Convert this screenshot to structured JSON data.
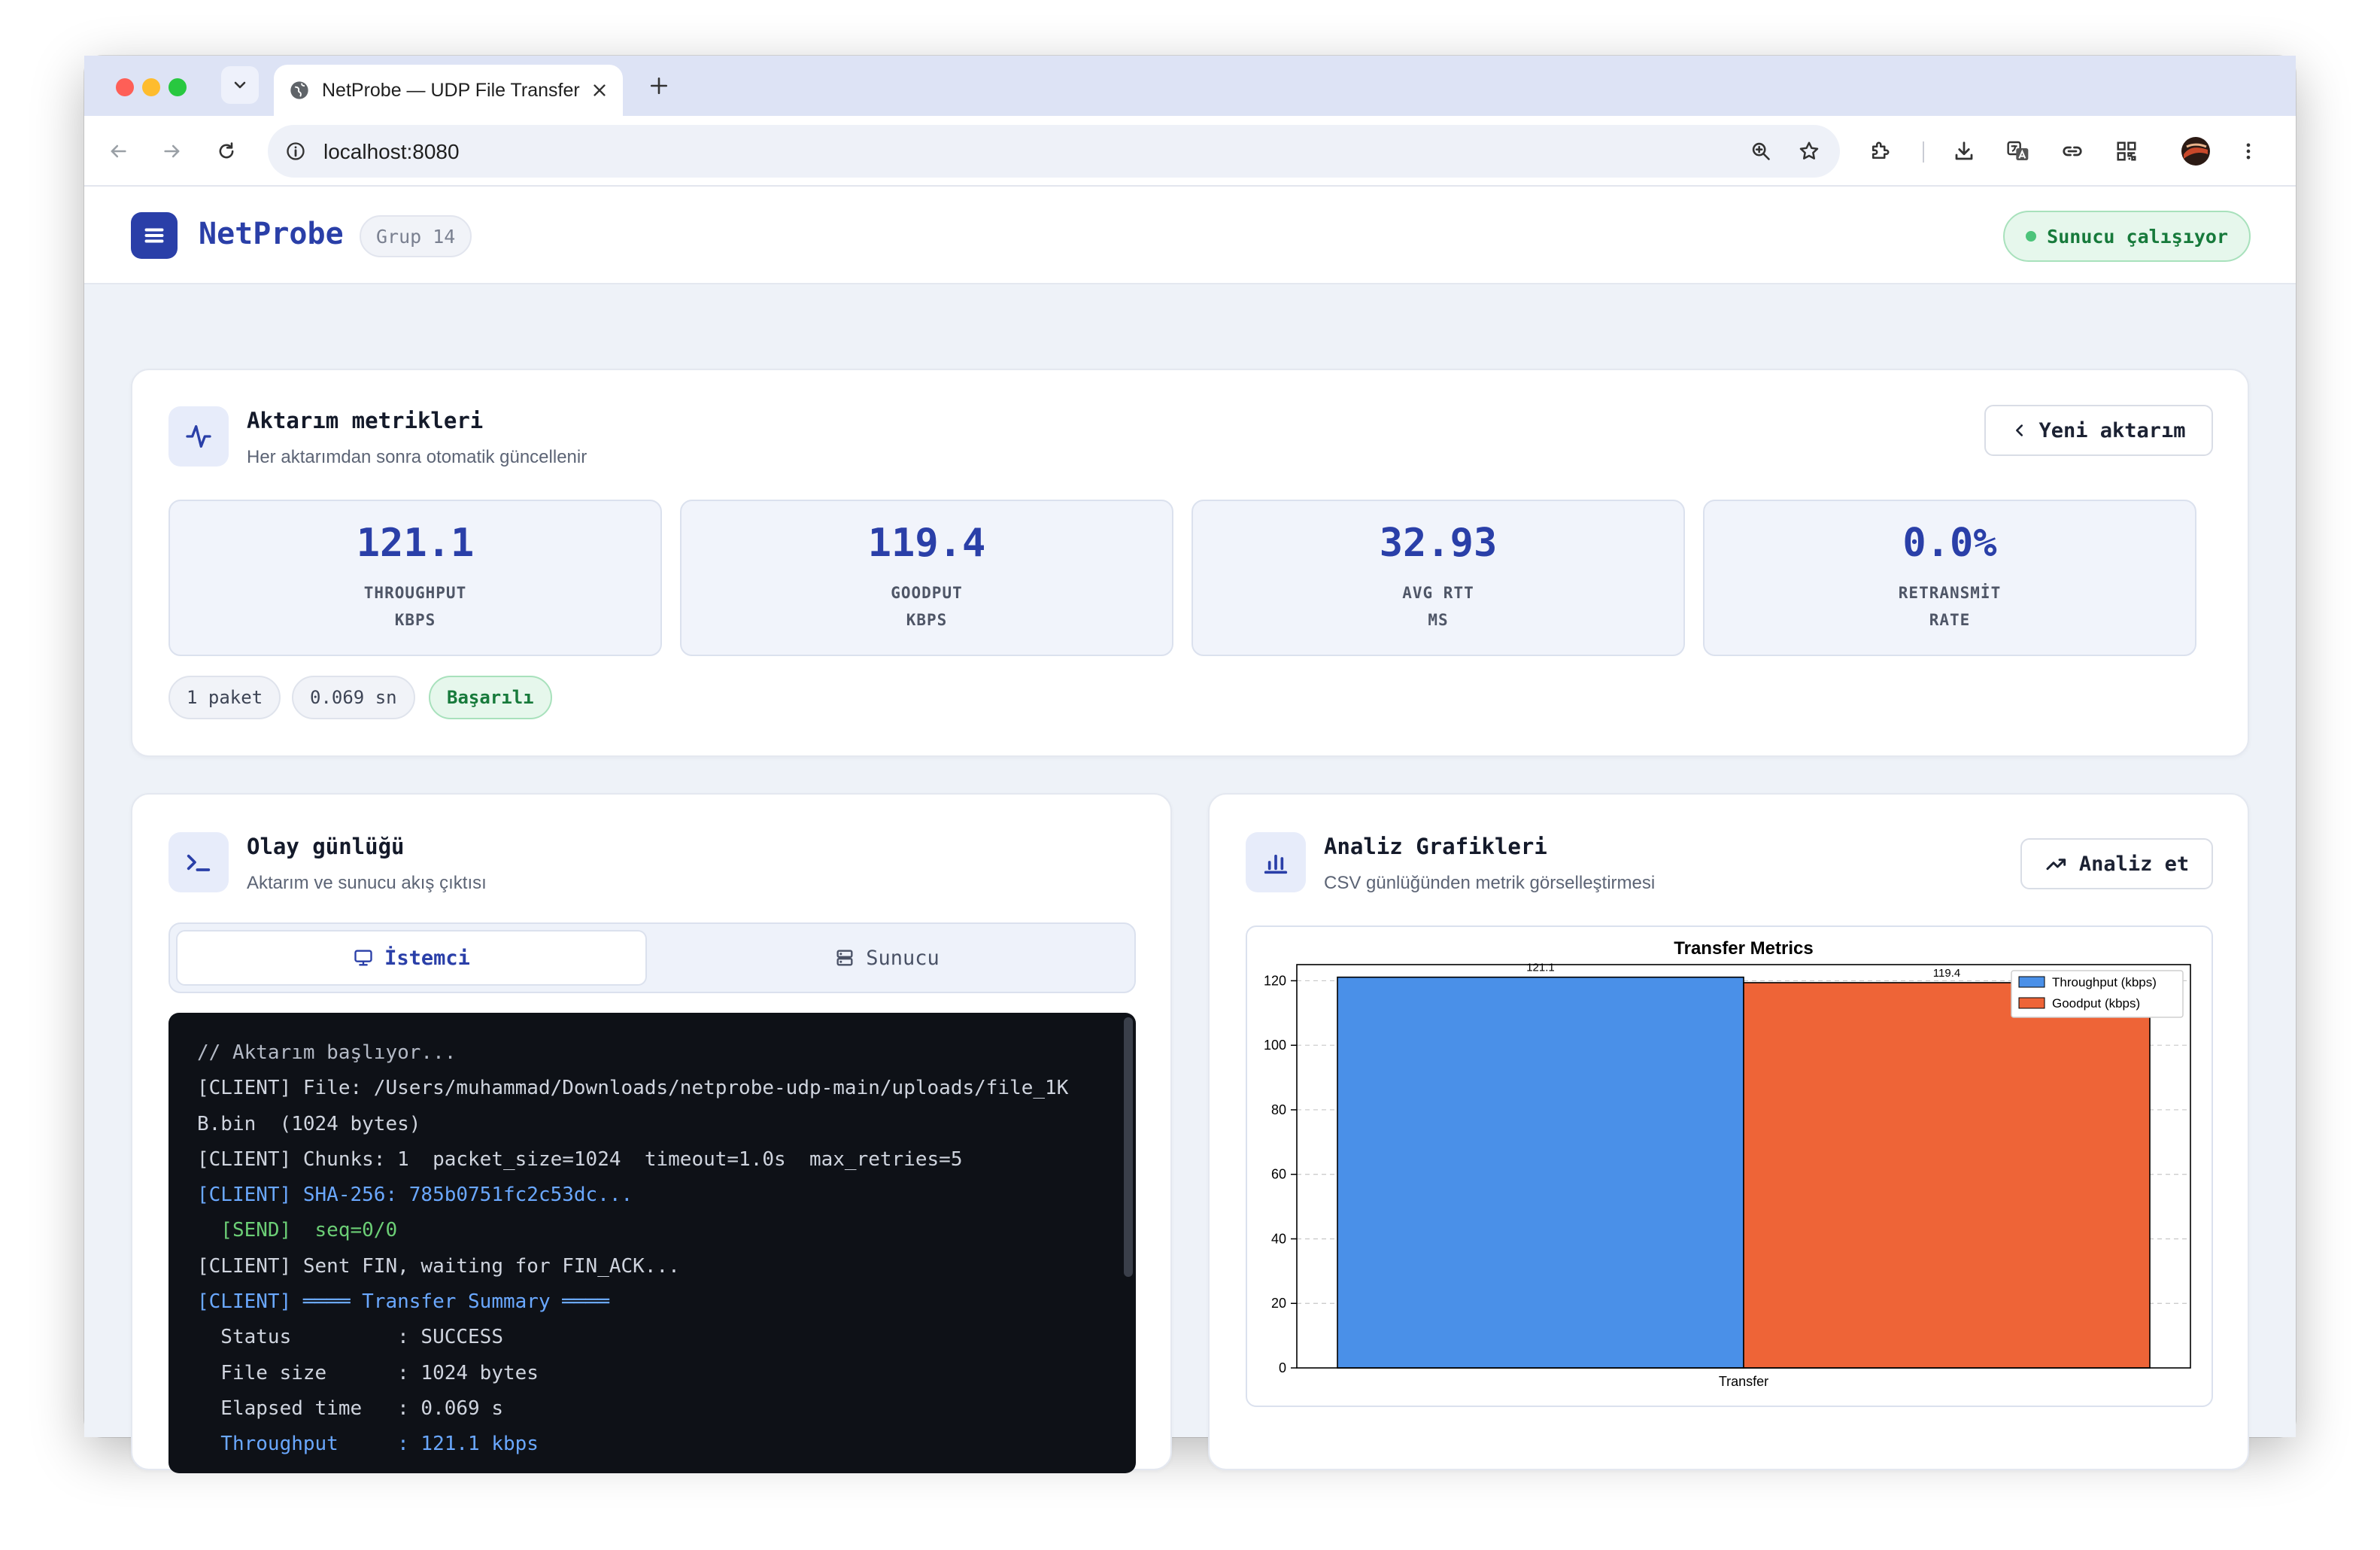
{
  "browser": {
    "tab_title": "NetProbe — UDP File Transfer",
    "url": "localhost:8080"
  },
  "app": {
    "brand": "NetProbe",
    "group_badge": "Grup 14",
    "server_status": "Sunucu çalışıyor"
  },
  "metrics_card": {
    "title": "Aktarım metrikleri",
    "subtitle": "Her aktarımdan sonra otomatik güncellenir",
    "new_transfer_label": "Yeni aktarım",
    "metrics": [
      {
        "value": "121.1",
        "label1": "THROUGHPUT",
        "label2": "KBPS"
      },
      {
        "value": "119.4",
        "label1": "GOODPUT",
        "label2": "KBPS"
      },
      {
        "value": "32.93",
        "label1": "AVG RTT",
        "label2": "MS"
      },
      {
        "value": "0.0%",
        "label1": "RETRANSMİT",
        "label2": "RATE"
      }
    ],
    "chips": {
      "packets": "1 paket",
      "duration": "0.069 sn",
      "status": "Başarılı"
    }
  },
  "log_card": {
    "title": "Olay günlüğü",
    "subtitle": "Aktarım ve sunucu akış çıktısı",
    "tabs": {
      "client": "İstemci",
      "server": "Sunucu"
    },
    "lines": [
      "// Aktarım başlıyor...",
      "[CLIENT] File: /Users/muhammad/Downloads/netprobe-udp-main/uploads/file_1K",
      "B.bin  (1024 bytes)",
      "[CLIENT] Chunks: 1  packet_size=1024  timeout=1.0s  max_retries=5",
      "[CLIENT] SHA-256: 785b0751fc2c53dc...",
      "  [SEND]  seq=0/0",
      "[CLIENT] Sent FIN, waiting for FIN_ACK...",
      "[CLIENT] ════ Transfer Summary ════",
      "  Status         : SUCCESS",
      "  File size      : 1024 bytes",
      "  Elapsed time   : 0.069 s",
      "  Throughput     : 121.1 kbps"
    ]
  },
  "analysis_card": {
    "title": "Analiz Grafikleri",
    "subtitle": "CSV günlüğünden metrik görselleştirmesi",
    "analyze_label": "Analiz et"
  },
  "chart_data": {
    "type": "bar",
    "title": "Transfer Metrics",
    "categories": [
      "Transfer"
    ],
    "series": [
      {
        "name": "Throughput (kbps)",
        "values": [
          121.1
        ],
        "color": "#4a90e8"
      },
      {
        "name": "Goodput (kbps)",
        "values": [
          119.4
        ],
        "color": "#ee6437"
      }
    ],
    "data_labels": [
      "121.1",
      "119.4"
    ],
    "xlabel": "",
    "ylabel": "",
    "ylim": [
      0,
      125
    ],
    "yticks": [
      0,
      20,
      40,
      60,
      80,
      100,
      120
    ],
    "grid": true,
    "legend_position": "top-right"
  }
}
